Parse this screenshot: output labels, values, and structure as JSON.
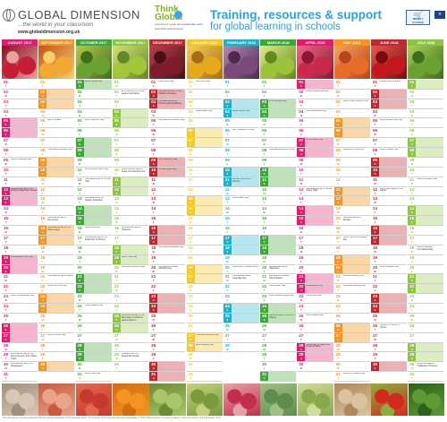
{
  "header": {
    "brand": "GLOBAL DIMENSION",
    "tagline": "...the world in your classroom",
    "site": "www.globaldimension.org.uk",
    "partner_name": "Think Global",
    "partner_sub": "Learning for a just and sustainable world",
    "partner_url": "www.think-global.org.uk",
    "title": "Training, resources & support",
    "subtitle": "for global learning in schools",
    "support_badge": "SUPPLY CHANGE",
    "eu_flag_icon": "eu-flag-icon",
    "cart_icon": "cart-icon"
  },
  "weekday_order": [
    "M",
    "T",
    "W",
    "T",
    "F",
    "S",
    "S"
  ],
  "months": [
    {
      "label": "AUGUST 2017",
      "color": "#e5196d",
      "weekend_color": "#f5b5cf",
      "start": 1,
      "days": 31,
      "photo": [
        "#c81d35",
        "#8a1020",
        "#e8a0a0"
      ],
      "events": {
        "9": "World Orangutan Day",
        "12": "International Day of the World's Indigenous Peoples",
        "19": "International Youth Day",
        "23": "World Humanitarian Day",
        "29": "International Day for the Remembrance of the Slave Trade",
        "30": "International Day of the Disappeared"
      }
    },
    {
      "label": "SEPTEMBER 2017",
      "color": "#f7931e",
      "weekend_color": "#fbd7a8",
      "start": 4,
      "days": 30,
      "photo": [
        "#f2a833",
        "#c4531a",
        "#f7d06a"
      ],
      "events": {
        "5": "Day of Charity",
        "8": "International Literacy Day",
        "15": "International Day of Democracy",
        "16": "International Day for the Ozone Layer",
        "21": "International Day of Peace",
        "22": "World Car Free Day",
        "27": "World Tourism Day"
      }
    },
    {
      "label": "OCTOBER 2017",
      "color": "#3aaa35",
      "weekend_color": "#bfe2bb",
      "start": 6,
      "days": 31,
      "photo": [
        "#6aa232",
        "#b8c84a",
        "#3d6e1a"
      ],
      "events": {
        "1": "World Habitat Day",
        "5": "World Teachers' Day",
        "10": "World Mental Health Day",
        "11": "International Day of the Girl Child",
        "13": "International Day for Disaster Reduction",
        "16": "World Food Day",
        "17": "International Day for the Eradication of Poverty",
        "24": "United Nations Day",
        "31": "World Cities Day"
      }
    },
    {
      "label": "NOVEMBER 2017",
      "color": "#8cc63f",
      "weekend_color": "#dcedc2",
      "start": 2,
      "days": 30,
      "photo": [
        "#a4c639",
        "#d6e07a",
        "#5f8a24"
      ],
      "events": {
        "2": "End Impunity for Crimes against Journalists",
        "10": "World Science Day for Peace and Development",
        "16": "International Day for Tolerance",
        "19": "World Toilet Day",
        "20": "Universal Children's Day",
        "25": "International Day for the Elimination of Violence against Women",
        "29": "Solidarity with the Palestinian People"
      }
    },
    {
      "label": "DECEMBER 2017",
      "color": "#c1272d",
      "weekend_color": "#eab2b4",
      "start": 4,
      "days": 31,
      "photo": [
        "#7d1d2a",
        "#b8404a",
        "#4a1018"
      ],
      "events": {
        "1": "World AIDS Day",
        "2": "International Day for the Abolition of Slavery",
        "3": "International Day of Persons with Disabilities",
        "5": "International Volunteer Day",
        "9": "Anti-Corruption Day",
        "10": "Human Rights Day",
        "18": "International Migrants Day",
        "20": "International Human Solidarity Day"
      }
    },
    {
      "label": "JANUARY 2018",
      "color": "#f8c81e",
      "weekend_color": "#fcebb0",
      "start": 0,
      "days": 31,
      "photo": [
        "#e7a91c",
        "#f4cf55",
        "#a86d10"
      ],
      "events": {
        "1": "New Year's Day",
        "4": "World Braille Day",
        "27": "Holocaust Memorial Day",
        "28": "World Leprosy Day"
      }
    },
    {
      "label": "FEBRUARY 2018",
      "color": "#1bb3c9",
      "weekend_color": "#b6e6ee",
      "start": 3,
      "days": 28,
      "photo": [
        "#7c4a7a",
        "#b489b3",
        "#4d2a4e"
      ],
      "events": {
        "4": "World Cancer Day",
        "6": "Zero Tolerance to FGM",
        "11": "Women and Girls in Science",
        "13": "World Radio Day",
        "20": "World Day of Social Justice",
        "21": "International Mother Language Day"
      }
    },
    {
      "label": "MARCH 2018",
      "color": "#3aaa35",
      "weekend_color": "#bfe2bb",
      "start": 3,
      "days": 31,
      "photo": [
        "#9dc33b",
        "#e2ea8a",
        "#5e8b1c"
      ],
      "events": {
        "3": "World Wildlife Day",
        "8": "International Women's Day",
        "20": "International Day of Happiness",
        "21": "Elimination of Racial Discrimination",
        "22": "World Water Day",
        "23": "World Meteorological Day",
        "25": "Remembrance of Victims of Slavery"
      }
    },
    {
      "label": "APRIL 2018",
      "color": "#e5196d",
      "weekend_color": "#f5b5cf",
      "start": 6,
      "days": 30,
      "photo": [
        "#c92a4b",
        "#e86b87",
        "#8e1631"
      ],
      "events": {
        "2": "Autism Awareness Day",
        "4": "Mine Awareness Day",
        "7": "World Health Day",
        "12": "International Day of Human Space Flight",
        "22": "Mother Earth Day",
        "23": "World Book Day",
        "25": "World Malaria Day",
        "28": "World Day for Safety and Health at Work"
      }
    },
    {
      "label": "MAY 2018",
      "color": "#f7931e",
      "weekend_color": "#fbd7a8",
      "start": 1,
      "days": 31,
      "photo": [
        "#e96d2a",
        "#f4a15d",
        "#b8441a"
      ],
      "events": {
        "3": "World Press Freedom Day",
        "8": "World Red Cross Day",
        "15": "International Day of Families",
        "17": "World Telecommunication Day",
        "21": "Cultural Diversity Day",
        "22": "Biological Diversity Day",
        "31": "World No Tobacco Day"
      }
    },
    {
      "label": "JUNE 2018",
      "color": "#c1272d",
      "weekend_color": "#eab2b4",
      "start": 4,
      "days": 30,
      "photo": [
        "#c4161c",
        "#e55a4a",
        "#7a0a10"
      ],
      "events": {
        "1": "Global Day of Parents",
        "5": "World Environment Day",
        "8": "World Oceans Day",
        "12": "World Day Against Child Labour",
        "20": "World Refugee Day",
        "26": "Support of Victims of Torture"
      }
    },
    {
      "label": "JULY 2018",
      "color": "#8cc63f",
      "weekend_color": "#dcedc2",
      "start": 6,
      "days": 31,
      "photo": [
        "#6aa232",
        "#a9d15a",
        "#3d6e1a"
      ],
      "events": {
        "11": "World Population Day",
        "18": "Nelson Mandela International Day",
        "30": "World Day Against Trafficking in Persons"
      }
    }
  ],
  "photo_strip": [
    {
      "name": "garlic-photo",
      "colors": [
        "#d8c7b5",
        "#a08f7a"
      ]
    },
    {
      "name": "peaches-photo",
      "colors": [
        "#e9a48a",
        "#c85a3e"
      ]
    },
    {
      "name": "apples-photo",
      "colors": [
        "#c7392e",
        "#e06a4c"
      ]
    },
    {
      "name": "oranges-photo",
      "colors": [
        "#f2941f",
        "#d46c12"
      ]
    },
    {
      "name": "kohlrabi-photo",
      "colors": [
        "#a9c66b",
        "#6f8a34"
      ]
    },
    {
      "name": "courgette-photo",
      "colors": [
        "#7a9a3c",
        "#c2d27d"
      ]
    },
    {
      "name": "radish-photo",
      "colors": [
        "#c22f4b",
        "#e6a2aa"
      ]
    },
    {
      "name": "cabbage-photo",
      "colors": [
        "#5f8d4e",
        "#9ec084"
      ]
    },
    {
      "name": "asparagus-photo",
      "colors": [
        "#8aa74b",
        "#cfdc9a"
      ]
    },
    {
      "name": "onions-photo",
      "colors": [
        "#d9c3a0",
        "#b08858"
      ]
    },
    {
      "name": "chilli-photo",
      "colors": [
        "#d32a1e",
        "#8ab03a"
      ]
    },
    {
      "name": "herbs-photo",
      "colors": [
        "#5f9a34",
        "#2c6218"
      ]
    }
  ],
  "footer": "This wall planner has been produced with the financial assistance of the European Union. The contents of this event are the sole responsibility of Think Global and can in no way be taken to reflect the position of the European Union."
}
